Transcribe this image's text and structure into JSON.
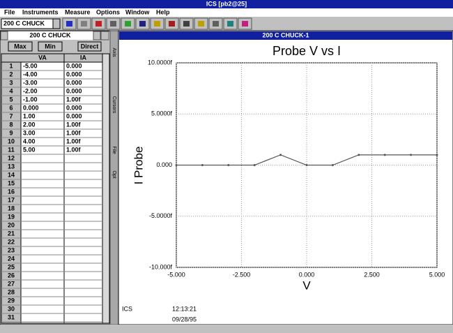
{
  "window": {
    "title": "ICS [pb2@25]"
  },
  "menu": [
    "File",
    "Instruments",
    "Measure",
    "Options",
    "Window",
    "Help"
  ],
  "toolbar": {
    "combo": "200 C CHUCK"
  },
  "table_window": {
    "title": "200 C CHUCK",
    "buttons": [
      "Max",
      "Min",
      "Direct"
    ],
    "headers": [
      "VA",
      "IA"
    ],
    "rows": [
      [
        "1",
        "-5.00",
        "0.000"
      ],
      [
        "2",
        "-4.00",
        "0.000"
      ],
      [
        "3",
        "-3.00",
        "0.000"
      ],
      [
        "4",
        "-2.00",
        "0.000"
      ],
      [
        "5",
        "-1.00",
        "1.00f"
      ],
      [
        "6",
        "0.000",
        "0.000"
      ],
      [
        "7",
        "1.00",
        "0.000"
      ],
      [
        "8",
        "2.00",
        "1.00f"
      ],
      [
        "9",
        "3.00",
        "1.00f"
      ],
      [
        "10",
        "4.00",
        "1.00f"
      ],
      [
        "11",
        "5.00",
        "1.00f"
      ],
      [
        "12"
      ],
      [
        "13"
      ],
      [
        "14"
      ],
      [
        "15"
      ],
      [
        "16"
      ],
      [
        "17"
      ],
      [
        "18"
      ],
      [
        "19"
      ],
      [
        "20"
      ],
      [
        "21"
      ],
      [
        "22"
      ],
      [
        "23"
      ],
      [
        "24"
      ],
      [
        "25"
      ],
      [
        "26"
      ],
      [
        "27"
      ],
      [
        "28"
      ],
      [
        "29"
      ],
      [
        "30"
      ],
      [
        "31"
      ]
    ]
  },
  "side_tabs": [
    "Axis",
    "Cursors",
    "File",
    "Opt"
  ],
  "chart_window": {
    "title": "200 C CHUCK-1",
    "footer": {
      "source": "ICS",
      "time": "12:13:21",
      "date": "09/28/95"
    }
  },
  "chart_data": {
    "type": "line",
    "title": "Probe V vs I",
    "x_label": "V",
    "y_label": "I Probe",
    "x": [
      -5,
      -4,
      -3,
      -2,
      -1,
      0,
      1,
      2,
      3,
      4,
      5
    ],
    "values": [
      0,
      0,
      0,
      0,
      1,
      0,
      0,
      1,
      1,
      1,
      1
    ],
    "color": "#555555",
    "xlim": [
      -5,
      5
    ],
    "ylim": [
      -10,
      10
    ],
    "xticks": [
      {
        "value": -5,
        "label": "-5.000"
      },
      {
        "value": -2.5,
        "label": "-2.500"
      },
      {
        "value": 0,
        "label": "0.000"
      },
      {
        "value": 2.5,
        "label": "2.500"
      },
      {
        "value": 5,
        "label": "5.000"
      }
    ],
    "yticks": [
      {
        "value": -10,
        "label": "-10.000f"
      },
      {
        "value": -5,
        "label": "-5.0000f"
      },
      {
        "value": 0,
        "label": "0.000"
      },
      {
        "value": 5,
        "label": "5.0000f"
      },
      {
        "value": 10,
        "label": "10.0000f"
      }
    ],
    "grid": true
  }
}
